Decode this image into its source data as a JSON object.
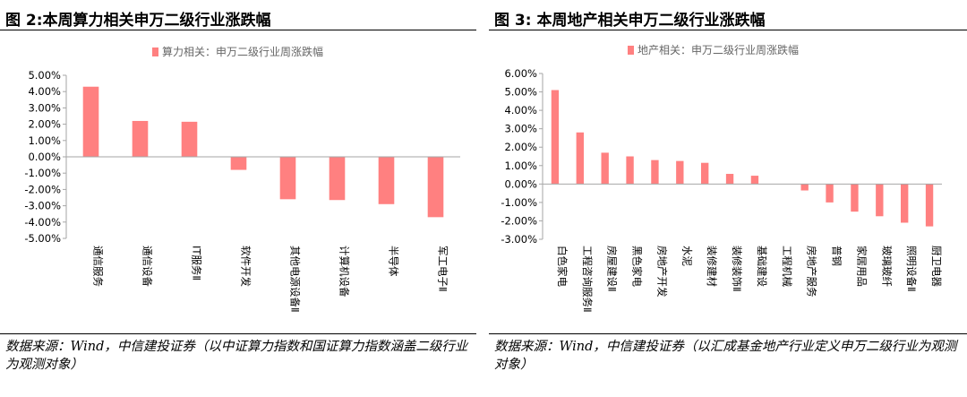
{
  "charts": [
    {
      "figure_title": "图 2:本周算力相关申万二级行业涨跌幅",
      "source": "数据来源：Wind，中信建投证券（以中证算力指数和国证算力指数涵盖二级行业为观测对象）",
      "chart_data": {
        "type": "bar",
        "title": "",
        "legend": "算力相关：申万二级行业周涨跌幅",
        "legend_position": "top-center",
        "ylim": [
          -5,
          5
        ],
        "ytick_step": 1,
        "ytick_labels": [
          "5.00%",
          "4.00%",
          "3.00%",
          "2.00%",
          "1.00%",
          "0.00%",
          "-1.00%",
          "-2.00%",
          "-3.00%",
          "-4.00%",
          "-5.00%"
        ],
        "grid": false,
        "bar_color": "#FF8080",
        "categories": [
          "通信服务",
          "通信设备",
          "IT服务Ⅱ",
          "软件开发",
          "其他电源设备Ⅱ",
          "计算机设备",
          "半导体",
          "军工电子Ⅱ"
        ],
        "values": [
          4.3,
          2.2,
          2.15,
          -0.8,
          -2.6,
          -2.65,
          -2.9,
          -3.7
        ]
      }
    },
    {
      "figure_title": "图 3: 本周地产相关申万二级行业涨跌幅",
      "source": "数据来源：Wind，中信建投证券（以汇成基金地产行业定义申万二级行业为观测对象）",
      "chart_data": {
        "type": "bar",
        "title": "",
        "legend": "地产相关：申万二级行业周涨跌幅",
        "legend_position": "top-center",
        "ylim": [
          -3,
          6
        ],
        "ytick_step": 1,
        "ytick_labels": [
          "6.00%",
          "5.00%",
          "4.00%",
          "3.00%",
          "2.00%",
          "1.00%",
          "0.00%",
          "-1.00%",
          "-2.00%",
          "-3.00%"
        ],
        "grid": false,
        "bar_color": "#FF8080",
        "categories": [
          "白色家电",
          "工程咨询服务Ⅱ",
          "房屋建设Ⅱ",
          "黑色家电",
          "房地产开发",
          "水泥",
          "装修建材",
          "装修装饰Ⅱ",
          "基础建设",
          "工程机械",
          "房地产服务",
          "普钢",
          "家居用品",
          "玻璃玻纤",
          "照明设备Ⅱ",
          "厨卫电器"
        ],
        "values": [
          5.1,
          2.8,
          1.7,
          1.5,
          1.3,
          1.25,
          1.15,
          0.55,
          0.45,
          0.0,
          -0.35,
          -1.0,
          -1.5,
          -1.75,
          -2.1,
          -2.3
        ]
      }
    }
  ]
}
